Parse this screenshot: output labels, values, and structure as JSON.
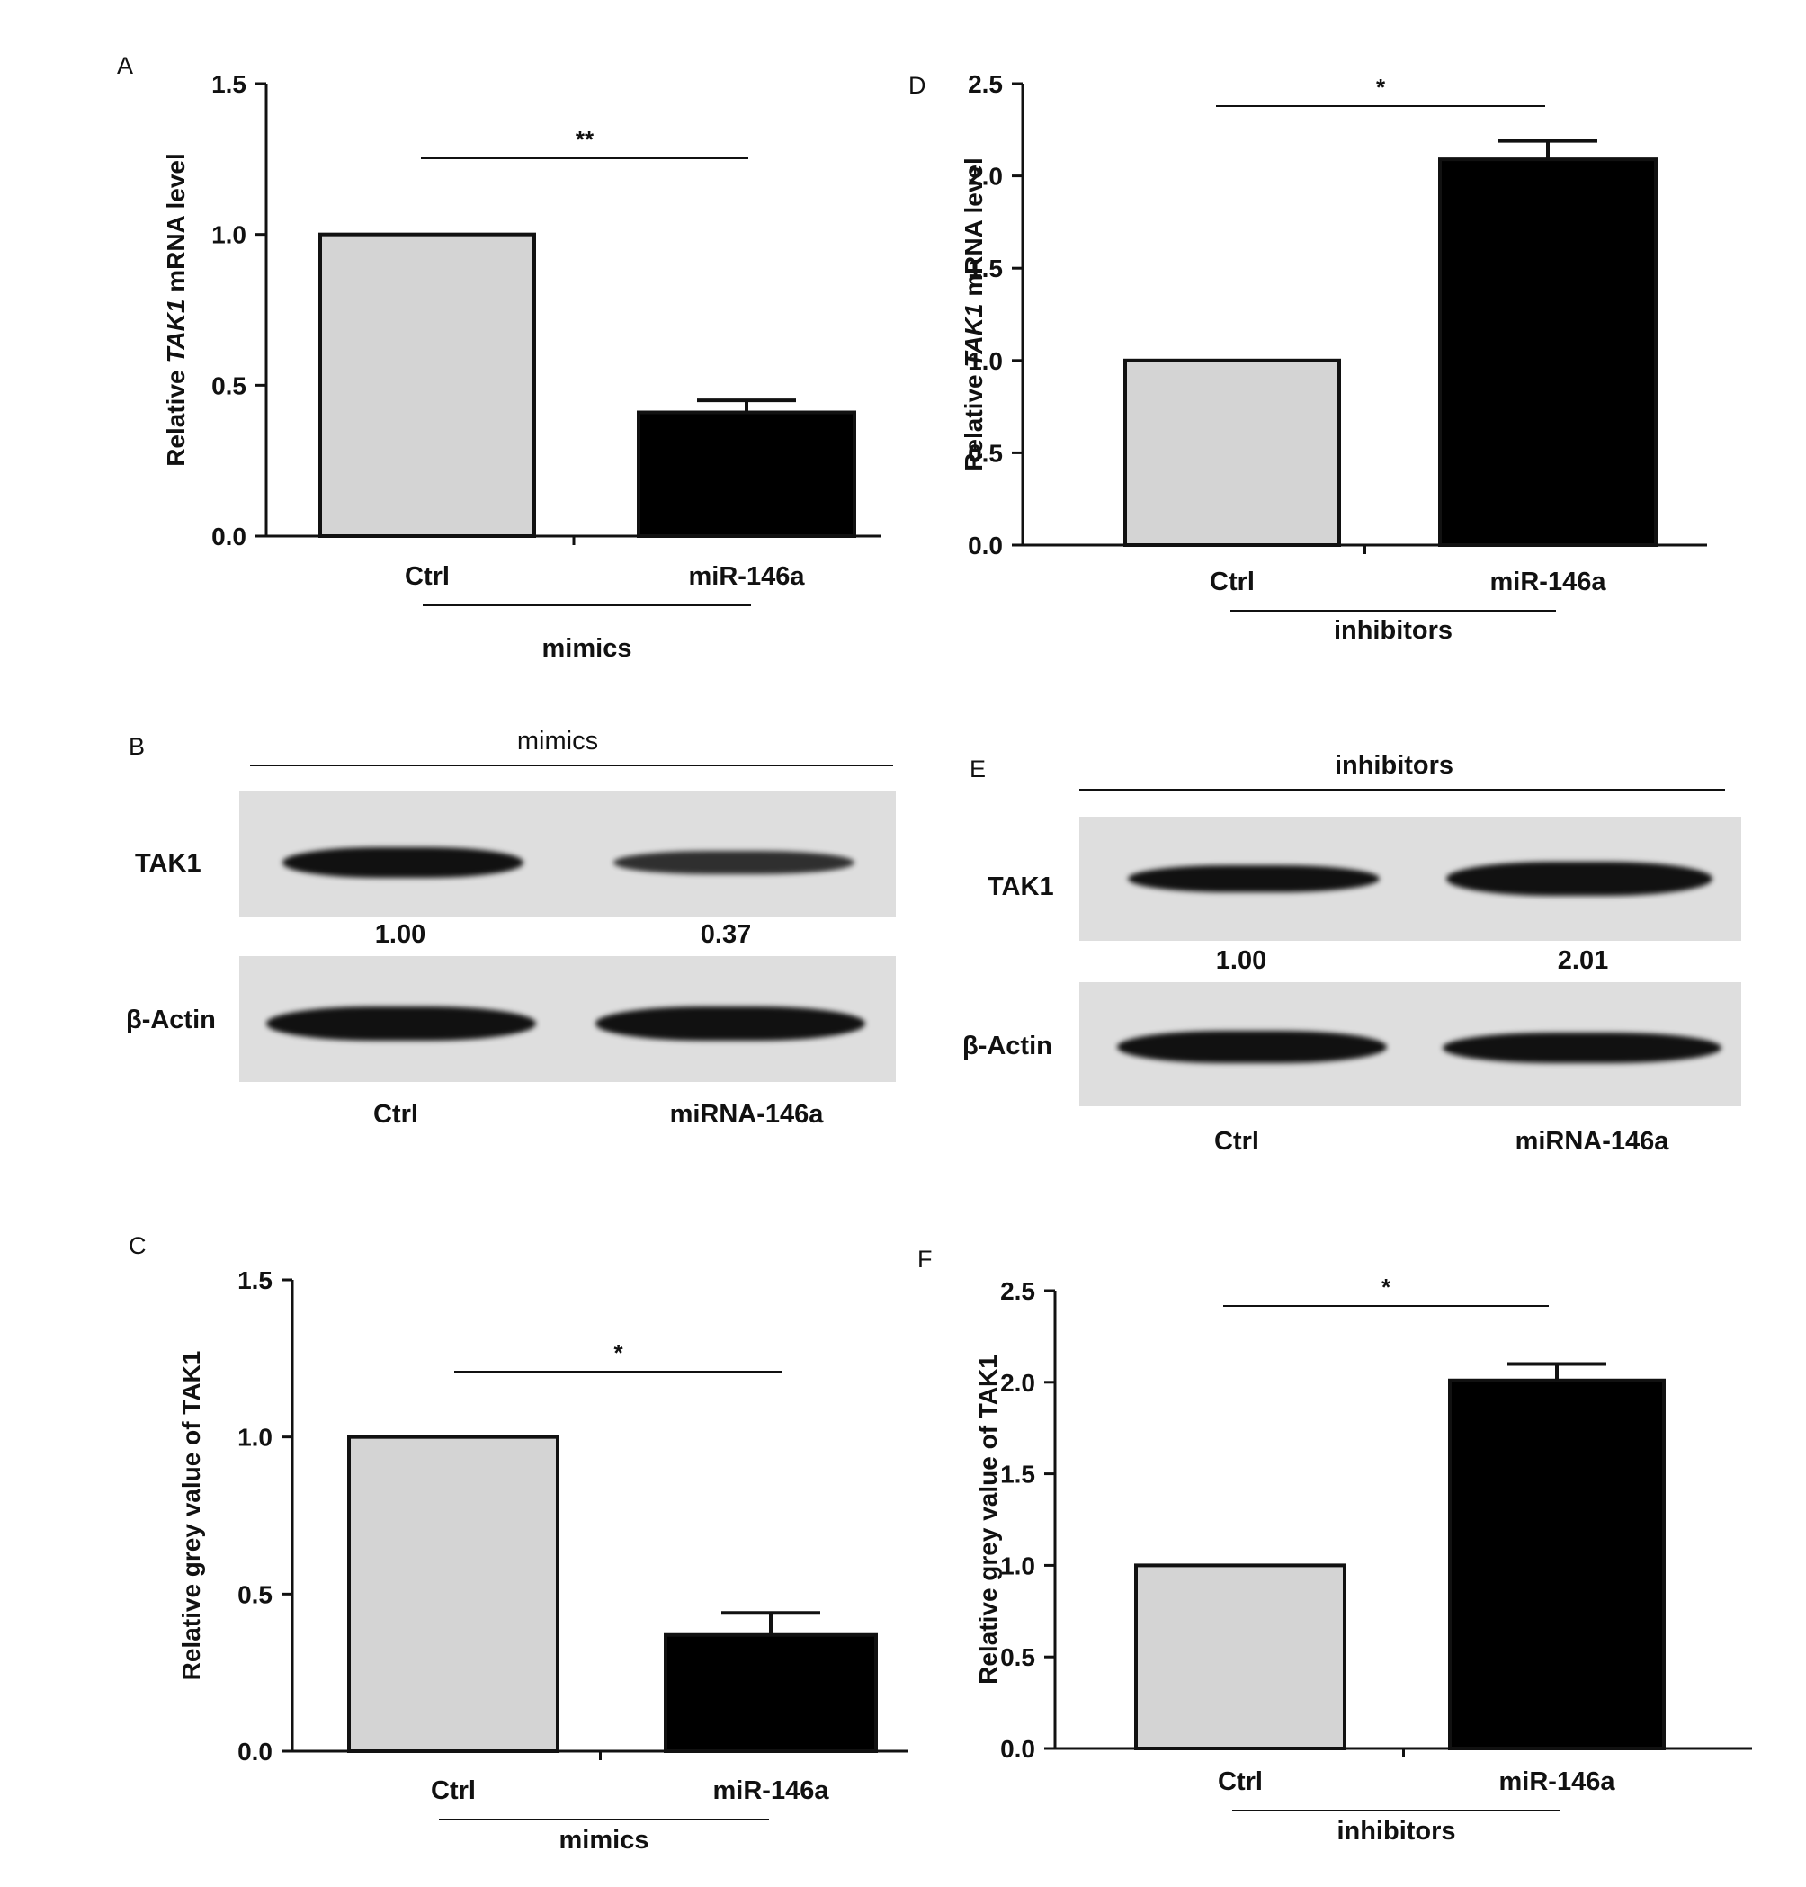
{
  "panels": {
    "A": "A",
    "B": "B",
    "C": "C",
    "D": "D",
    "E": "E",
    "F": "F"
  },
  "chart_data": [
    {
      "panel": "A",
      "type": "bar",
      "categories": [
        "Ctrl",
        "miR-146a"
      ],
      "values": [
        1.0,
        0.41
      ],
      "errors": [
        0,
        0.04
      ],
      "ylabel_pre": "Relative ",
      "ylabel_italic": "TAK1",
      "ylabel_post": " mRNA level",
      "yticks": [
        "0.0",
        "0.5",
        "1.0",
        "1.5"
      ],
      "ylim": [
        0,
        1.5
      ],
      "group_label": "mimics",
      "significance": "**",
      "bar_colors": [
        "#d4d4d4",
        "#000000"
      ]
    },
    {
      "panel": "D",
      "type": "bar",
      "categories": [
        "Ctrl",
        "miR-146a"
      ],
      "values": [
        1.0,
        2.09
      ],
      "errors": [
        0,
        0.1
      ],
      "ylabel_pre": "Relative ",
      "ylabel_italic": "TAK1",
      "ylabel_post": " mRNA level",
      "yticks": [
        "0.0",
        "0.5",
        "1.0",
        "1.5",
        "2.0",
        "2.5"
      ],
      "ylim": [
        0,
        2.5
      ],
      "group_label": "inhibitors",
      "significance": "*",
      "bar_colors": [
        "#d4d4d4",
        "#000000"
      ]
    },
    {
      "panel": "C",
      "type": "bar",
      "categories": [
        "Ctrl",
        "miR-146a"
      ],
      "values": [
        1.0,
        0.37
      ],
      "errors": [
        0,
        0.07
      ],
      "ylabel_pre": "Relative grey value of TAK1",
      "ylabel_italic": "",
      "ylabel_post": "",
      "yticks": [
        "0.0",
        "0.5",
        "1.0",
        "1.5"
      ],
      "ylim": [
        0,
        1.5
      ],
      "group_label": "mimics",
      "significance": "*",
      "bar_colors": [
        "#d4d4d4",
        "#000000"
      ]
    },
    {
      "panel": "F",
      "type": "bar",
      "categories": [
        "Ctrl",
        "miR-146a"
      ],
      "values": [
        1.0,
        2.01
      ],
      "errors": [
        0,
        0.09
      ],
      "ylabel_pre": "Relative grey value of TAK1",
      "ylabel_italic": "",
      "ylabel_post": "",
      "yticks": [
        "0.0",
        "0.5",
        "1.0",
        "1.5",
        "2.0",
        "2.5"
      ],
      "ylim": [
        0,
        2.5
      ],
      "group_label": "inhibitors",
      "significance": "*",
      "bar_colors": [
        "#d4d4d4",
        "#000000"
      ]
    }
  ],
  "blots": {
    "B": {
      "header": "mimics",
      "protein": "TAK1",
      "control_protein": "β-Actin",
      "quant": [
        "1.00",
        "0.37"
      ],
      "lanes": [
        "Ctrl",
        "miRNA-146a"
      ],
      "tak1_intensity": [
        1.0,
        0.37
      ]
    },
    "E": {
      "header": "inhibitors",
      "protein": "TAK1",
      "control_protein": "β-Actin",
      "quant": [
        "1.00",
        "2.01"
      ],
      "lanes": [
        "Ctrl",
        "miRNA-146a"
      ],
      "tak1_intensity": [
        1.0,
        2.01
      ]
    }
  }
}
